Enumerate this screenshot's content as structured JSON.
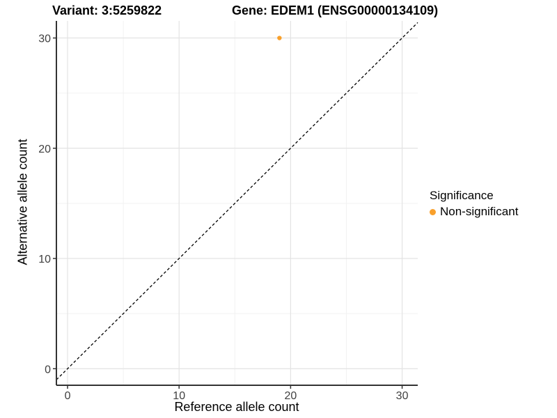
{
  "chart_data": {
    "type": "scatter",
    "title_variant": "Variant: 3:5259822",
    "title_gene": "Gene: EDEM1 (ENSG00000134109)",
    "xlabel": "Reference allele count",
    "ylabel": "Alternative allele count",
    "xlim": [
      -1.0,
      31.4
    ],
    "ylim": [
      -1.5,
      31.55
    ],
    "xticks": [
      0,
      10,
      20,
      30
    ],
    "yticks": [
      0,
      10,
      20,
      30
    ],
    "xminor": [
      5,
      15,
      25
    ],
    "yminor": [
      5,
      15,
      25
    ],
    "grid": true,
    "series": [
      {
        "name": "Non-significant",
        "color": "#F9A02B",
        "points": [
          {
            "x": 19,
            "y": 30
          }
        ]
      }
    ],
    "reference_line": {
      "type": "identity",
      "equation": "y = x",
      "style": "dashed",
      "color": "#000000"
    },
    "legend": {
      "position": "right",
      "title": "Significance",
      "items": [
        {
          "label": "Non-significant",
          "color": "#F9A02B",
          "marker": "circle"
        }
      ]
    }
  },
  "colors": {
    "background": "#FFFFFF",
    "major_grid": "#E3E3E3",
    "minor_grid": "#F2F2F2",
    "axis_line": "#333333",
    "tick_mark": "#333333",
    "tick_label": "#404040",
    "text": "#000000",
    "point": "#F9A02B"
  }
}
